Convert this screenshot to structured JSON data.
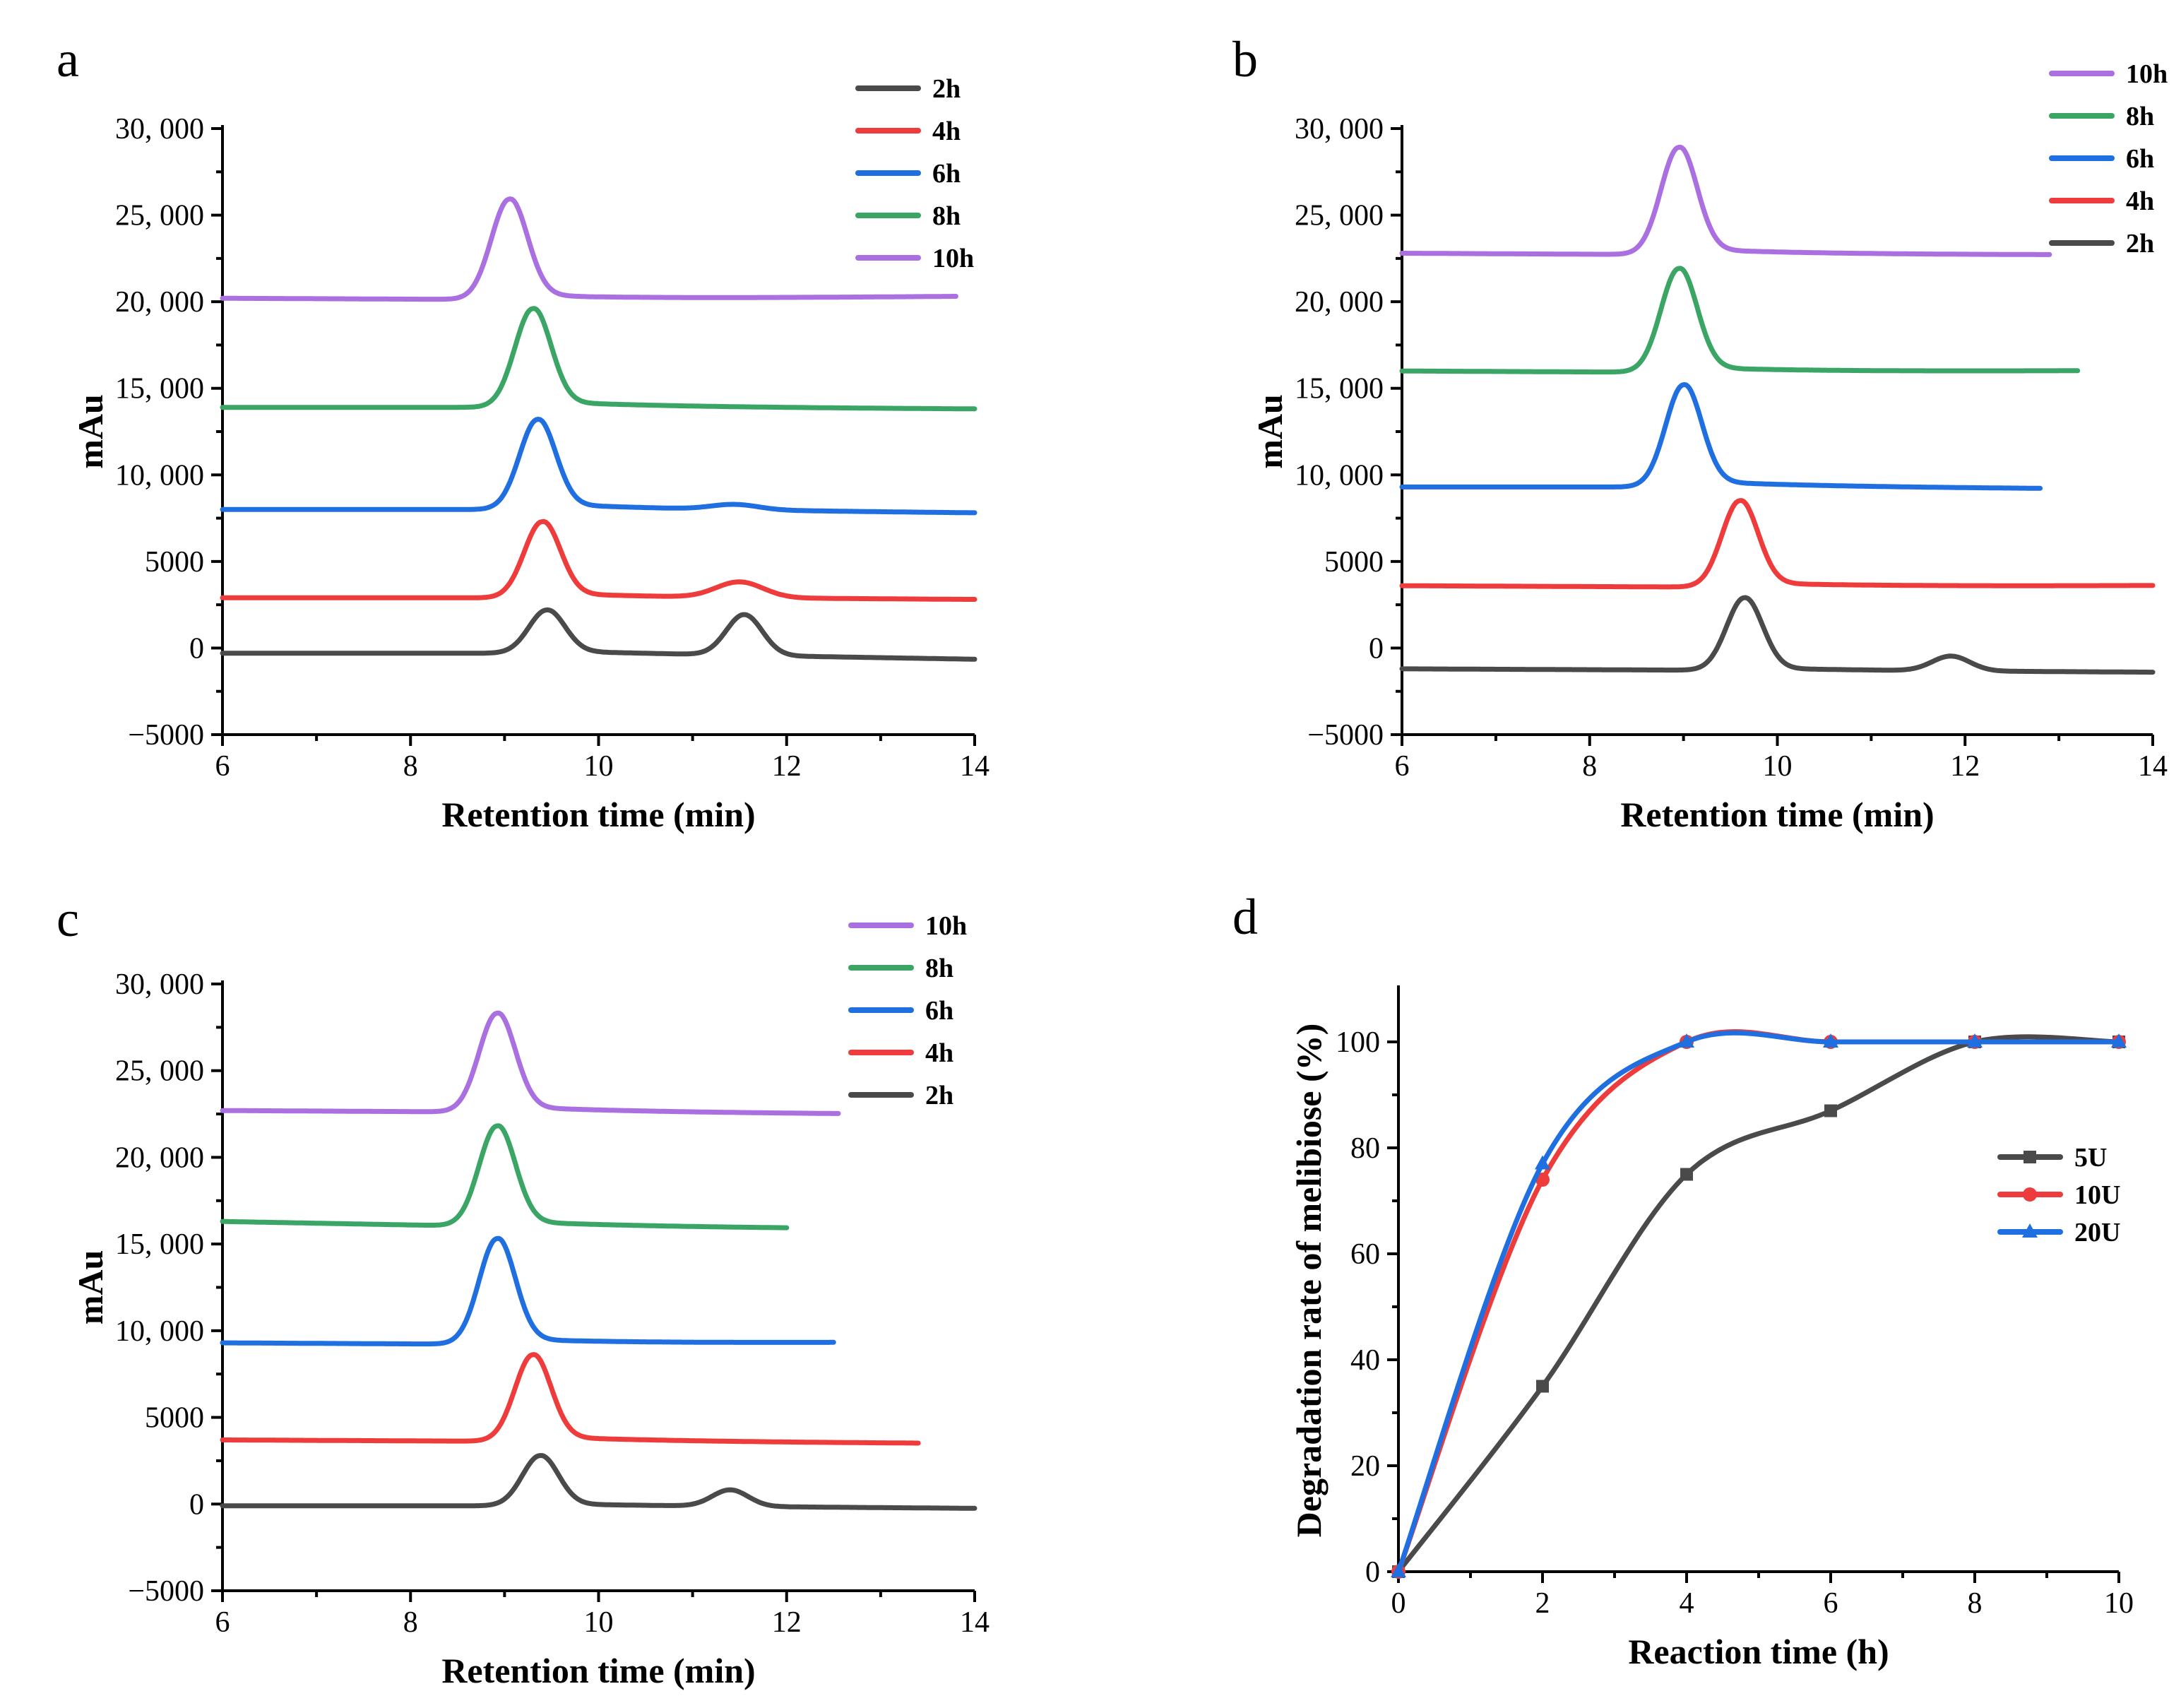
{
  "colors": {
    "2h": "#4a4a4a",
    "4h": "#ee3b3b",
    "6h": "#1f6fe0",
    "8h": "#3aa565",
    "10h": "#aa6fe0",
    "5U": "#4a4a4a",
    "10U": "#ee3b3b",
    "20U": "#1f6fe0"
  },
  "chart_data": [
    {
      "panel": "a",
      "type": "line",
      "xlabel": "Retention time (min)",
      "ylabel": "mAu",
      "xlim": [
        6,
        14
      ],
      "ylim": [
        -5000,
        30000
      ],
      "xticks": [
        "6",
        "8",
        "10",
        "12",
        "14"
      ],
      "yticks": [
        "−5000",
        "0",
        "5000",
        "10, 000",
        "15, 000",
        "20, 000",
        "25, 000",
        "30, 000"
      ],
      "legend_order": [
        "2h",
        "4h",
        "6h",
        "8h",
        "10h"
      ],
      "series": [
        {
          "name": "2h",
          "x_end": 14.0,
          "baseline": [
            -300,
            -300,
            -650
          ],
          "peaks": [
            [
              9.45,
              2500,
              0.19,
              0.3
            ],
            [
              11.55,
              2350,
              0.19,
              0
            ]
          ]
        },
        {
          "name": "4h",
          "x_end": 14.0,
          "baseline": [
            2900,
            2900,
            2800
          ],
          "peaks": [
            [
              9.4,
              4400,
              0.19,
              0.5
            ],
            [
              11.5,
              900,
              0.25,
              0
            ]
          ]
        },
        {
          "name": "6h",
          "x_end": 14.0,
          "baseline": [
            8000,
            8000,
            7800
          ],
          "peaks": [
            [
              9.35,
              5200,
              0.19,
              0.5
            ],
            [
              11.45,
              300,
              0.25,
              0
            ]
          ]
        },
        {
          "name": "8h",
          "x_end": 14.0,
          "baseline": [
            13900,
            13900,
            13800
          ],
          "peaks": [
            [
              9.3,
              5700,
              0.19,
              0.5
            ]
          ]
        },
        {
          "name": "10h",
          "x_end": 13.8,
          "baseline": [
            20200,
            20100,
            20300
          ],
          "peaks": [
            [
              9.05,
              5800,
              0.19,
              0.5
            ]
          ]
        }
      ]
    },
    {
      "panel": "b",
      "type": "line",
      "xlabel": "Retention time (min)",
      "ylabel": "mAu",
      "xlim": [
        6,
        14
      ],
      "ylim": [
        -5000,
        30000
      ],
      "xticks": [
        "6",
        "8",
        "10",
        "12",
        "14"
      ],
      "yticks": [
        "−5000",
        "0",
        "5000",
        "10, 000",
        "15, 000",
        "20, 000",
        "25, 000",
        "30, 000"
      ],
      "legend_order": [
        "10h",
        "8h",
        "6h",
        "4h",
        "2h"
      ],
      "series": [
        {
          "name": "2h",
          "x_end": 14.0,
          "baseline": [
            -1200,
            -1300,
            -1400
          ],
          "peaks": [
            [
              9.65,
              4200,
              0.19,
              0.3
            ],
            [
              11.85,
              850,
              0.2,
              0
            ]
          ]
        },
        {
          "name": "4h",
          "x_end": 14.0,
          "baseline": [
            3600,
            3500,
            3600
          ],
          "peaks": [
            [
              9.6,
              5000,
              0.19,
              0.5
            ]
          ]
        },
        {
          "name": "6h",
          "x_end": 12.8,
          "baseline": [
            9300,
            9300,
            9200
          ],
          "peaks": [
            [
              9.0,
              5900,
              0.19,
              0.5
            ]
          ]
        },
        {
          "name": "8h",
          "x_end": 13.2,
          "baseline": [
            16000,
            15900,
            16000
          ],
          "peaks": [
            [
              8.95,
              6000,
              0.19,
              0.5
            ]
          ]
        },
        {
          "name": "10h",
          "x_end": 12.9,
          "baseline": [
            22800,
            22700,
            22700
          ],
          "peaks": [
            [
              8.95,
              6200,
              0.19,
              0.5
            ]
          ]
        }
      ]
    },
    {
      "panel": "c",
      "type": "line",
      "xlabel": "Retention time (min)",
      "ylabel": "mAu",
      "xlim": [
        6,
        14
      ],
      "ylim": [
        -5000,
        30000
      ],
      "xticks": [
        "6",
        "8",
        "10",
        "12",
        "14"
      ],
      "yticks": [
        "−5000",
        "0",
        "5000",
        "10, 000",
        "15, 000",
        "20, 000",
        "25, 000",
        "30, 000"
      ],
      "legend_order": [
        "10h",
        "8h",
        "6h",
        "4h",
        "2h"
      ],
      "series": [
        {
          "name": "2h",
          "x_end": 14.0,
          "baseline": [
            -100,
            -100,
            -250
          ],
          "peaks": [
            [
              9.38,
              2900,
              0.19,
              0.3
            ],
            [
              11.4,
              950,
              0.19,
              0
            ]
          ]
        },
        {
          "name": "4h",
          "x_end": 13.4,
          "baseline": [
            3700,
            3600,
            3500
          ],
          "peaks": [
            [
              9.3,
              5000,
              0.19,
              0.5
            ]
          ]
        },
        {
          "name": "6h",
          "x_end": 12.5,
          "baseline": [
            9300,
            9200,
            9300
          ],
          "peaks": [
            [
              8.92,
              6100,
              0.19,
              0.5
            ]
          ]
        },
        {
          "name": "8h",
          "x_end": 12.0,
          "baseline": [
            16300,
            16000,
            15900
          ],
          "peaks": [
            [
              8.92,
              5800,
              0.19,
              0.5
            ]
          ]
        },
        {
          "name": "10h",
          "x_end": 12.55,
          "baseline": [
            22700,
            22600,
            22500
          ],
          "peaks": [
            [
              8.92,
              5700,
              0.19,
              0.5
            ]
          ]
        }
      ]
    },
    {
      "panel": "d",
      "type": "line",
      "xlabel": "Reaction time (h)",
      "ylabel": "Degradation rate of melibiose (%)",
      "xlim": [
        0,
        10
      ],
      "ylim": [
        0,
        110
      ],
      "xticks": [
        "0",
        "2",
        "4",
        "6",
        "8",
        "10"
      ],
      "yticks": [
        "0",
        "20",
        "40",
        "60",
        "80",
        "100"
      ],
      "legend_order": [
        "5U",
        "10U",
        "20U"
      ],
      "x": [
        0,
        2,
        4,
        6,
        8,
        10
      ],
      "series": [
        {
          "name": "5U",
          "marker": "square",
          "values": [
            0,
            35,
            75,
            87,
            100,
            100
          ]
        },
        {
          "name": "10U",
          "marker": "circle",
          "values": [
            0,
            74,
            100,
            100,
            100,
            100
          ]
        },
        {
          "name": "20U",
          "marker": "triangle",
          "values": [
            0,
            77,
            100,
            100,
            100,
            100
          ]
        }
      ]
    }
  ]
}
